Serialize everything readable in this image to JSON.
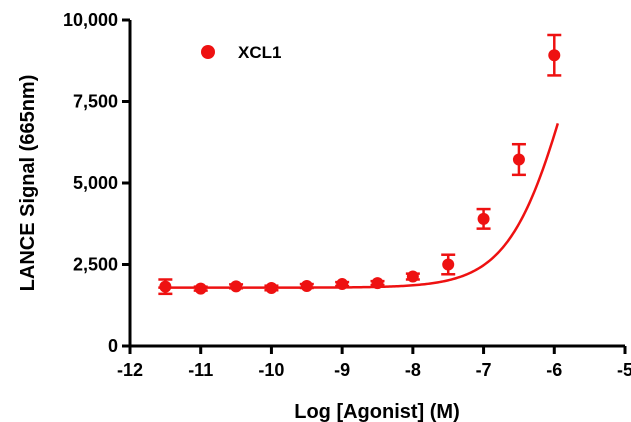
{
  "chart_data": {
    "type": "scatter",
    "xlabel": "Log [Agonist] (M)",
    "ylabel": "LANCE Signal (665nm)",
    "xlim": [
      -12,
      -5
    ],
    "ylim": [
      0,
      10000
    ],
    "x_ticks": [
      -12,
      -11,
      -10,
      -9,
      -8,
      -7,
      -6,
      -5
    ],
    "x_tick_labels": [
      "-12",
      "-11",
      "-10",
      "-9",
      "-8",
      "-7",
      "-6",
      "-5"
    ],
    "y_ticks": [
      0,
      2500,
      5000,
      7500,
      10000
    ],
    "y_tick_labels": [
      "0",
      "2,500",
      "5,000",
      "7,500",
      "10,000"
    ],
    "grid": false,
    "legend_position": "top-left",
    "color": "#ee1111",
    "series": [
      {
        "name": "XCL1",
        "x": [
          -11.5,
          -11.0,
          -10.5,
          -10.0,
          -9.5,
          -9.0,
          -8.5,
          -8.0,
          -7.5,
          -7.0,
          -6.5,
          -6.0
        ],
        "y": [
          1820,
          1760,
          1830,
          1780,
          1840,
          1900,
          1930,
          2130,
          2500,
          3900,
          5720,
          8920
        ],
        "error": [
          220,
          60,
          60,
          70,
          60,
          60,
          60,
          90,
          300,
          300,
          470,
          620
        ]
      }
    ],
    "fit_curve": {
      "model": "sigmoidal dose-response",
      "bottom": 1790,
      "top": 15000,
      "log_ec50": -5.74,
      "hill_slope": 1.0,
      "x_range": [
        -11.6,
        -5.95
      ]
    }
  }
}
